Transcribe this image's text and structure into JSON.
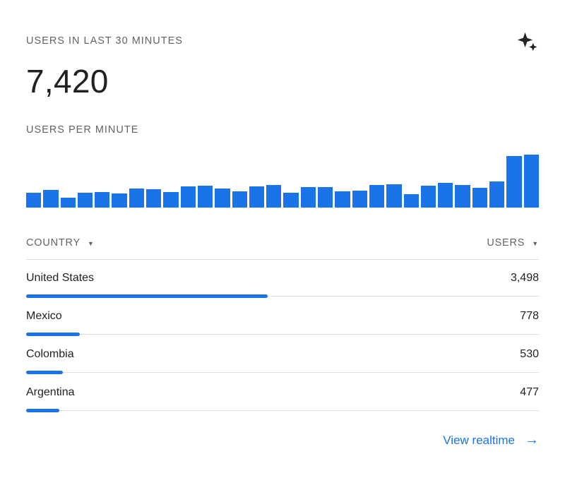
{
  "card": {
    "title": "USERS IN LAST 30 MINUTES",
    "metric_value": "7,420",
    "chart_label": "USERS PER MINUTE",
    "footer_link": "View realtime",
    "footer_arrow": "→",
    "sort_arrow": "▼"
  },
  "colors": {
    "accent_blue": "#1a73e8",
    "bar_blue": "#1a73e8",
    "text_primary": "#202124",
    "text_secondary": "#5f6368",
    "divider_gray": "#dadce0",
    "track_gray": "#e0e0e0"
  },
  "chart_data": {
    "type": "bar",
    "title": "USERS PER MINUTE",
    "values": [
      22,
      26,
      14,
      22,
      23,
      21,
      28,
      27,
      23,
      31,
      32,
      28,
      24,
      31,
      33,
      22,
      30,
      30,
      24,
      25,
      33,
      34,
      19,
      32,
      36,
      33,
      29,
      38,
      75,
      77
    ],
    "ylim": [
      0,
      80
    ],
    "grid": false,
    "axis_tick_labels_visible": false,
    "bar_color": "#1a73e8"
  },
  "table": {
    "columns": [
      "COUNTRY",
      "USERS"
    ],
    "total_users": 7420,
    "rows": [
      {
        "country": "United States",
        "users": "3,498",
        "users_value": 3498
      },
      {
        "country": "Mexico",
        "users": "778",
        "users_value": 778
      },
      {
        "country": "Colombia",
        "users": "530",
        "users_value": 530
      },
      {
        "country": "Argentina",
        "users": "477",
        "users_value": 477
      }
    ]
  }
}
